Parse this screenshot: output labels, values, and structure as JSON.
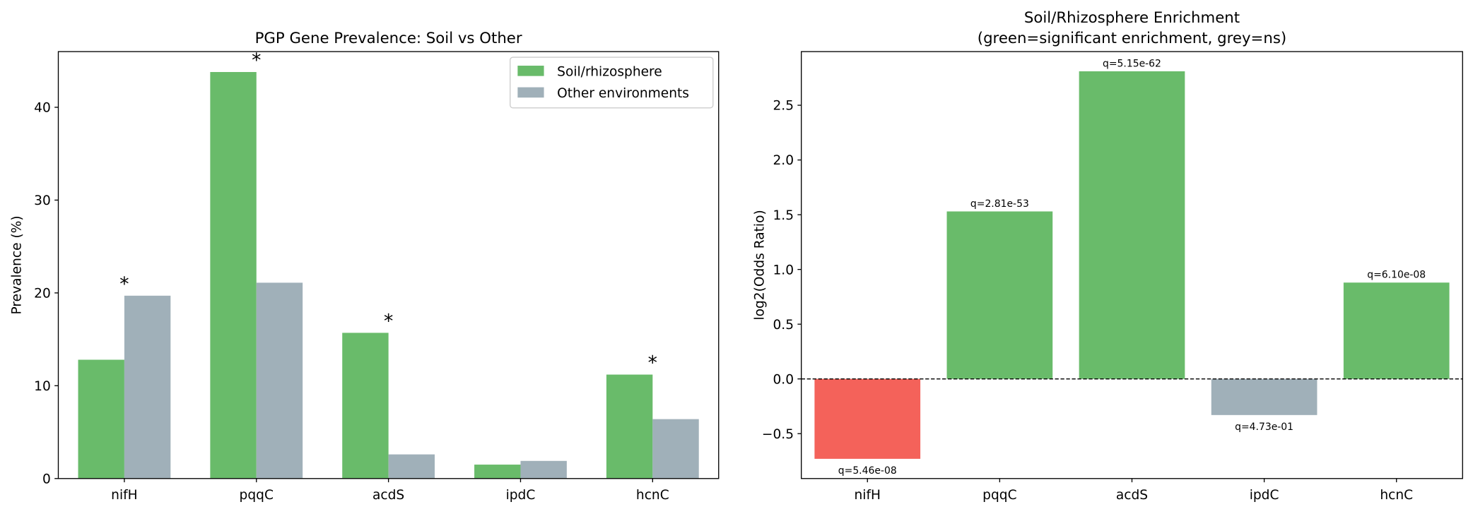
{
  "chart_data": [
    {
      "type": "grouped_bar",
      "title": "PGP Gene Prevalence: Soil vs Other",
      "y_label": "Prevalence (%)",
      "categories": [
        "nifH",
        "pqqC",
        "acdS",
        "ipdC",
        "hcnC"
      ],
      "series": [
        {
          "name": "Soil/rhizosphere",
          "color": "#69bb6a",
          "values": [
            12.8,
            43.8,
            15.7,
            1.5,
            11.2
          ]
        },
        {
          "name": "Other environments",
          "color": "#a0b0b9",
          "values": [
            19.7,
            21.1,
            2.6,
            1.9,
            6.4
          ]
        }
      ],
      "annotations": [
        "*",
        "*",
        "*",
        null,
        "*"
      ],
      "ylim": [
        0,
        46
      ],
      "yticks": [
        0,
        10,
        20,
        30,
        40
      ],
      "legend": "upper right"
    },
    {
      "type": "bar",
      "title": "Soil/Rhizosphere Enrichment",
      "subtitle": "(green=significant enrichment, grey=ns)",
      "y_label": "log2(Odds Ratio)",
      "categories": [
        "nifH",
        "pqqC",
        "acdS",
        "ipdC",
        "hcnC"
      ],
      "values": [
        -0.73,
        1.53,
        2.81,
        -0.33,
        0.88
      ],
      "colors": [
        "#f4625a",
        "#69bb6a",
        "#69bb6a",
        "#a0b0b9",
        "#69bb6a"
      ],
      "annotations": [
        "q=5.46e-08",
        "q=2.81e-53",
        "q=5.15e-62",
        "q=4.73e-01",
        "q=6.10e-08"
      ],
      "ylim": [
        -0.91,
        2.99
      ],
      "yticks": [
        {
          "value": -0.5,
          "label": "−0.5"
        },
        {
          "value": 0,
          "label": "0.0"
        },
        0.5,
        {
          "value": 1,
          "label": "1.0"
        },
        1.5,
        {
          "value": 2,
          "label": "2.0"
        },
        2.5
      ]
    }
  ]
}
